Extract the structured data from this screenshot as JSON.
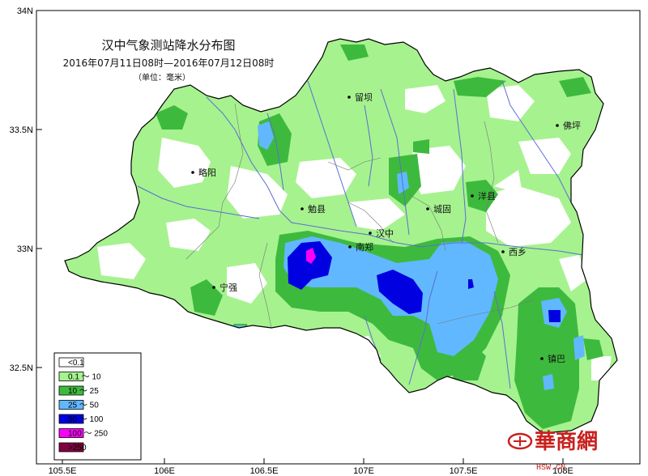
{
  "title": "汉中气象测站降水分布图",
  "subtitle": "2016年07月11日08时—2016年07月12日08时",
  "unit": "（单位：毫米）",
  "axes": {
    "x_ticks": [
      "105.5E",
      "106E",
      "106.5E",
      "107E",
      "107.5E",
      "108E"
    ],
    "y_ticks": [
      "34N",
      "33.5N",
      "33N",
      "32.5N"
    ]
  },
  "colors": {
    "lt0_1": "#ffffff",
    "r0_1_10": "#a6f28f",
    "r10_25": "#3dba3d",
    "r25_50": "#61b8ff",
    "r50_100": "#0000e1",
    "r100_250": "#fa00fa",
    "gt250": "#800040",
    "river": "#5a6ed0",
    "border": "#000000"
  },
  "legend": [
    {
      "label": "<0.1",
      "color": "#ffffff"
    },
    {
      "label": "0.1 ～ 10",
      "color": "#a6f28f"
    },
    {
      "label": "10 ～ 25",
      "color": "#3dba3d"
    },
    {
      "label": "25 ～ 50",
      "color": "#61b8ff"
    },
    {
      "label": "50 ～ 100",
      "color": "#0000e1"
    },
    {
      "label": "100 ～ 250",
      "color": "#fa00fa"
    },
    {
      "label": ">250",
      "color": "#800040"
    }
  ],
  "cities": [
    {
      "name": "留坝"
    },
    {
      "name": "佛坪"
    },
    {
      "name": "略阳"
    },
    {
      "name": "洋县"
    },
    {
      "name": "勉县"
    },
    {
      "name": "城固"
    },
    {
      "name": "汉中"
    },
    {
      "name": "南郑"
    },
    {
      "name": "西乡"
    },
    {
      "name": "宁强"
    },
    {
      "name": "镇巴"
    }
  ],
  "watermark": {
    "brand": "華商網",
    "url": "HSW.CN"
  }
}
